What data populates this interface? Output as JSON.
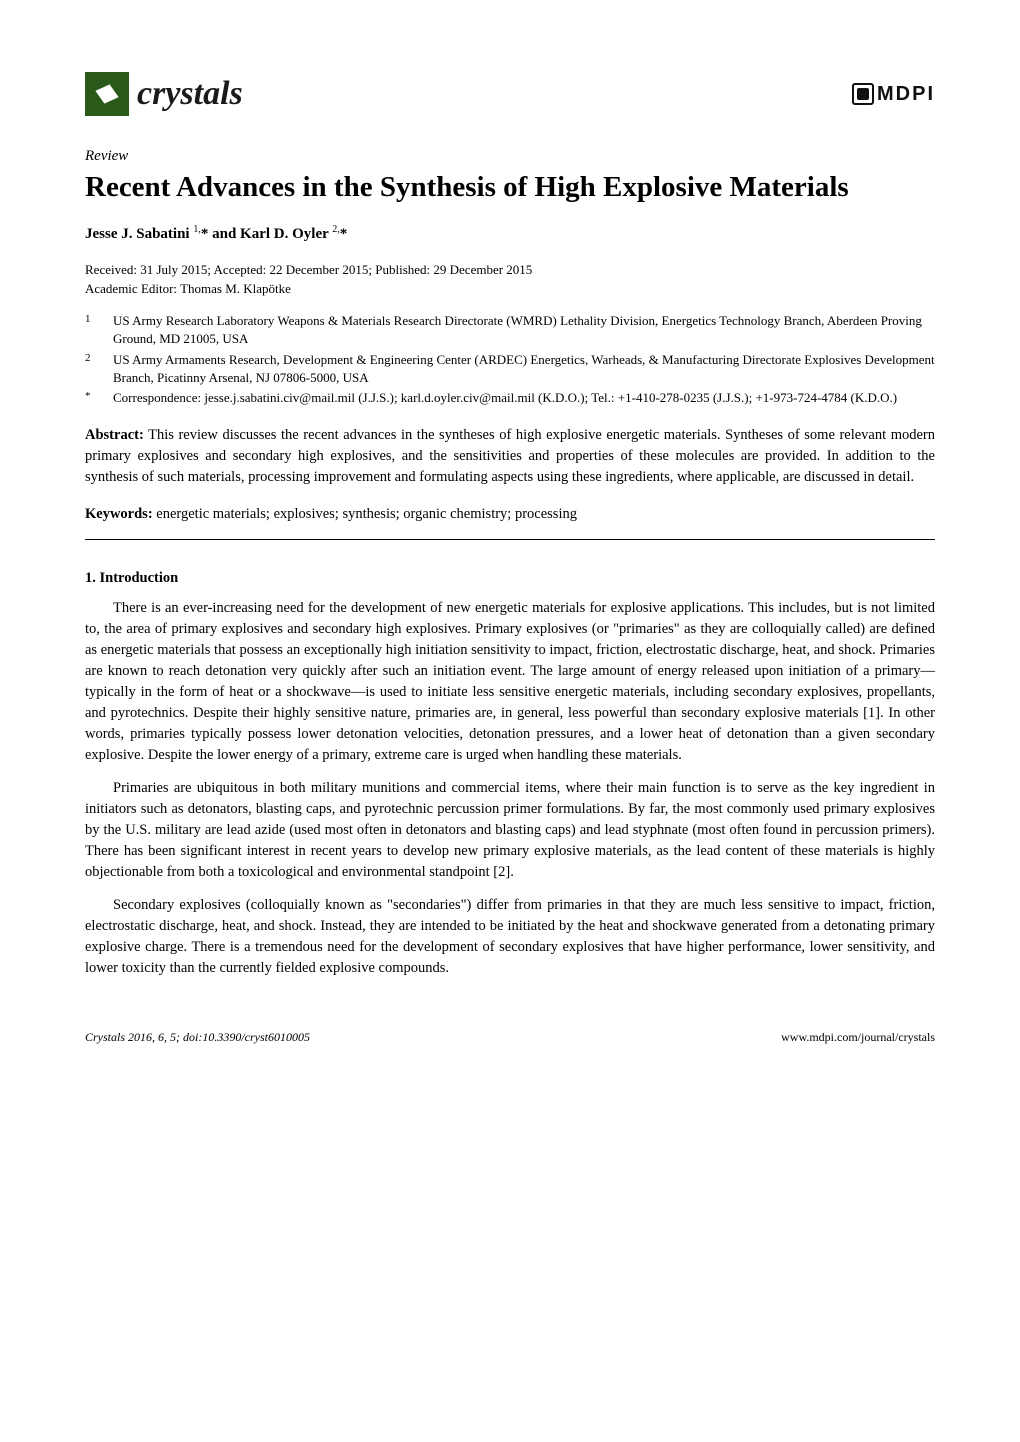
{
  "journal": {
    "name": "crystals"
  },
  "publisher": {
    "name": "MDPI"
  },
  "article_type": "Review",
  "title": "Recent Advances in the Synthesis of High Explosive Materials",
  "authors_html": "Jesse J. Sabatini <sup>1,</sup>* and Karl D. Oyler <sup>2,</sup>*",
  "received": "Received: 31 July 2015; Accepted: 22 December 2015; Published: 29 December 2015",
  "editor": "Academic Editor: Thomas M. Klapötke",
  "affiliations": [
    {
      "marker": "1",
      "text": "US Army Research Laboratory Weapons & Materials Research Directorate (WMRD) Lethality Division, Energetics Technology Branch, Aberdeen Proving Ground, MD 21005, USA"
    },
    {
      "marker": "2",
      "text": "US Army Armaments Research, Development & Engineering Center (ARDEC) Energetics, Warheads, & Manufacturing Directorate Explosives Development Branch, Picatinny Arsenal, NJ 07806-5000, USA"
    },
    {
      "marker": "*",
      "text": "Correspondence: jesse.j.sabatini.civ@mail.mil (J.J.S.); karl.d.oyler.civ@mail.mil (K.D.O.); Tel.: +1-410-278-0235 (J.J.S.); +1-973-724-4784 (K.D.O.)"
    }
  ],
  "abstract_label": "Abstract:",
  "abstract": "This review discusses the recent advances in the syntheses of high explosive energetic materials. Syntheses of some relevant modern primary explosives and secondary high explosives, and the sensitivities and properties of these molecules are provided. In addition to the synthesis of such materials, processing improvement and formulating aspects using these ingredients, where applicable, are discussed in detail.",
  "keywords_label": "Keywords:",
  "keywords": "energetic materials; explosives; synthesis; organic chemistry; processing",
  "section1_title": "1.  Introduction",
  "paragraphs": [
    "There is an ever-increasing need for the development of new energetic materials for explosive applications. This includes, but is not limited to, the area of primary explosives and secondary high explosives. Primary explosives (or \"primaries\" as they are colloquially called) are defined as energetic materials that possess an exceptionally high initiation sensitivity to impact, friction, electrostatic discharge, heat, and shock. Primaries are known to reach detonation very quickly after such an initiation event. The large amount of energy released upon initiation of a primary—typically in the form of heat or a shockwave—is used to initiate less sensitive energetic materials, including secondary explosives, propellants, and pyrotechnics. Despite their highly sensitive nature, primaries are, in general, less powerful than secondary explosive materials [1]. In other words, primaries typically possess lower detonation velocities, detonation pressures, and a lower heat of detonation than a given secondary explosive. Despite the lower energy of a primary, extreme care is urged when handling these materials.",
    "Primaries are ubiquitous in both military munitions and commercial items, where their main function is to serve as the key ingredient in initiators such as detonators, blasting caps, and pyrotechnic percussion primer formulations. By far, the most commonly used primary explosives by the U.S. military are lead azide (used most often in detonators and blasting caps) and lead styphnate (most often found in percussion primers). There has been significant interest in recent years to develop new primary explosive materials, as the lead content of these materials is highly objectionable from both a toxicological and environmental standpoint [2].",
    "Secondary explosives (colloquially known as \"secondaries\") differ from primaries in that they are much less sensitive to impact, friction, electrostatic discharge, heat, and shock. Instead, they are intended to be initiated by the heat and shockwave generated from a detonating primary explosive charge. There is a tremendous need for the development of secondary explosives that have higher performance, lower sensitivity, and lower toxicity than the currently fielded explosive compounds."
  ],
  "footer": {
    "left": "Crystals 2016, 6, 5; doi:10.3390/cryst6010005",
    "right": "www.mdpi.com/journal/crystals"
  }
}
